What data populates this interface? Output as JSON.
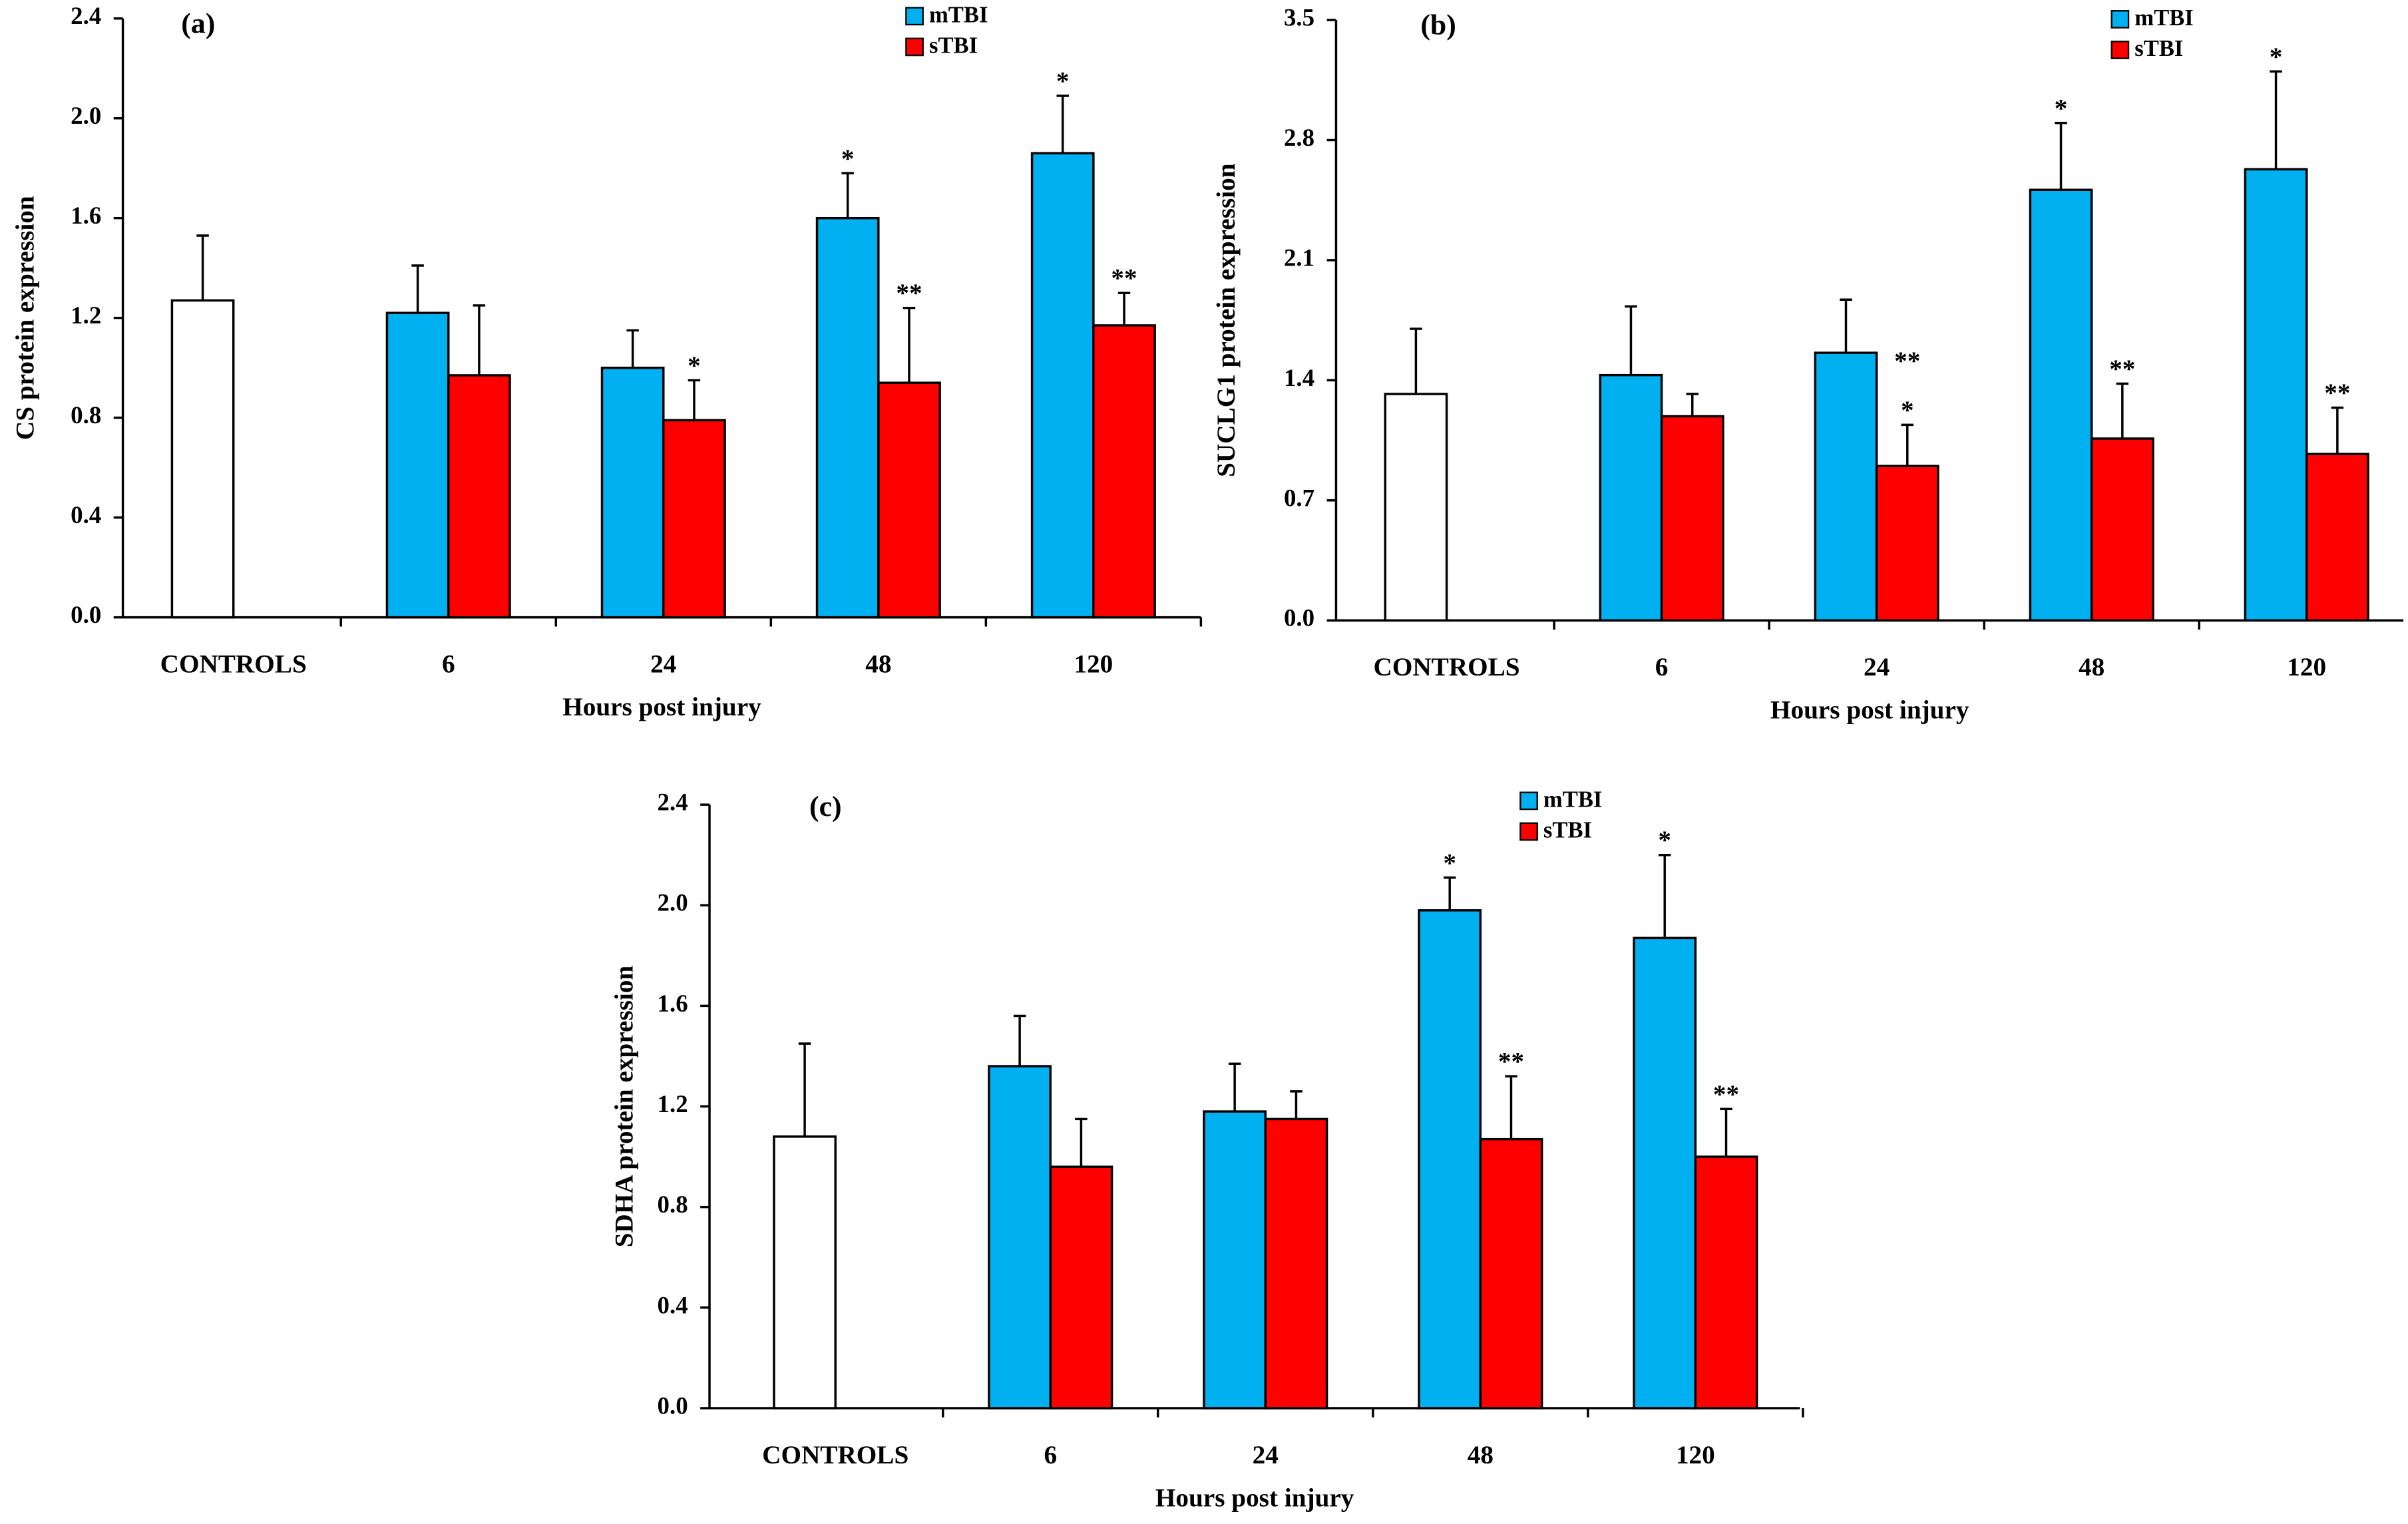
{
  "chart_data": [
    {
      "type": "bar",
      "title": "(a)",
      "ylabel": "CS protein expression",
      "xlabel": "Hours post injury",
      "categories": [
        "CONTROLS",
        "6",
        "24",
        "48",
        "120"
      ],
      "control_value": 1.27,
      "control_error": 0.26,
      "control_color": "#ffffff",
      "series": [
        {
          "name": "mTBI",
          "color": "#00b0f0",
          "values": [
            null,
            1.22,
            1.0,
            1.6,
            1.86
          ],
          "errors": [
            null,
            0.19,
            0.15,
            0.18,
            0.23
          ],
          "annotations": [
            null,
            null,
            null,
            [
              "*"
            ],
            [
              "*"
            ]
          ]
        },
        {
          "name": "sTBI",
          "color": "#ff0000",
          "values": [
            null,
            0.97,
            0.79,
            0.94,
            1.17
          ],
          "errors": [
            null,
            0.28,
            0.16,
            0.3,
            0.13
          ],
          "annotations": [
            null,
            null,
            [
              "*"
            ],
            [
              "**"
            ],
            [
              "**"
            ]
          ]
        }
      ],
      "ylim": [
        0,
        2.4
      ],
      "yticks": [
        {
          "value": 0,
          "label": "0.0"
        },
        0.4,
        0.8,
        1.2,
        1.6,
        {
          "value": 2,
          "label": "2.0"
        },
        2.4
      ]
    },
    {
      "type": "bar",
      "title": "(b)",
      "ylabel": "SUCLG1 protein expression",
      "xlabel": "Hours post injury",
      "categories": [
        "CONTROLS",
        "6",
        "24",
        "48",
        "120"
      ],
      "control_value": 1.32,
      "control_error": 0.38,
      "control_color": "#ffffff",
      "series": [
        {
          "name": "mTBI",
          "color": "#00b0f0",
          "values": [
            null,
            1.43,
            1.56,
            2.51,
            2.63
          ],
          "errors": [
            null,
            0.4,
            0.31,
            0.39,
            0.57
          ],
          "annotations": [
            null,
            null,
            null,
            [
              "*"
            ],
            [
              "*"
            ]
          ]
        },
        {
          "name": "sTBI",
          "color": "#ff0000",
          "values": [
            null,
            1.19,
            0.9,
            1.06,
            0.97
          ],
          "errors": [
            null,
            0.13,
            0.24,
            0.32,
            0.27
          ],
          "annotations": [
            null,
            null,
            [
              "**",
              "*"
            ],
            [
              "**"
            ],
            [
              "**"
            ]
          ]
        }
      ],
      "ylim": [
        0,
        3.5
      ],
      "yticks": [
        {
          "value": 0,
          "label": "0.0"
        },
        0.7,
        1.4,
        2.1,
        2.8,
        3.5
      ]
    },
    {
      "type": "bar",
      "title": "(c)",
      "ylabel": "SDHA protein expression",
      "xlabel": "Hours post injury",
      "categories": [
        "CONTROLS",
        "6",
        "24",
        "48",
        "120"
      ],
      "control_value": 1.08,
      "control_error": 0.37,
      "control_color": "#ffffff",
      "series": [
        {
          "name": "mTBI",
          "color": "#00b0f0",
          "values": [
            null,
            1.36,
            1.18,
            1.98,
            1.87
          ],
          "errors": [
            null,
            0.2,
            0.19,
            0.13,
            0.33
          ],
          "annotations": [
            null,
            null,
            null,
            [
              "*"
            ],
            [
              "*"
            ]
          ]
        },
        {
          "name": "sTBI",
          "color": "#ff0000",
          "values": [
            null,
            0.96,
            1.15,
            1.07,
            1.0
          ],
          "errors": [
            null,
            0.19,
            0.11,
            0.25,
            0.19
          ],
          "annotations": [
            null,
            null,
            null,
            [
              "**"
            ],
            [
              "**"
            ]
          ]
        }
      ],
      "ylim": [
        0,
        2.4
      ],
      "yticks": [
        {
          "value": 0,
          "label": "0.0"
        },
        0.4,
        0.8,
        1.2,
        1.6,
        {
          "value": 2,
          "label": "2.0"
        },
        2.4
      ]
    }
  ]
}
